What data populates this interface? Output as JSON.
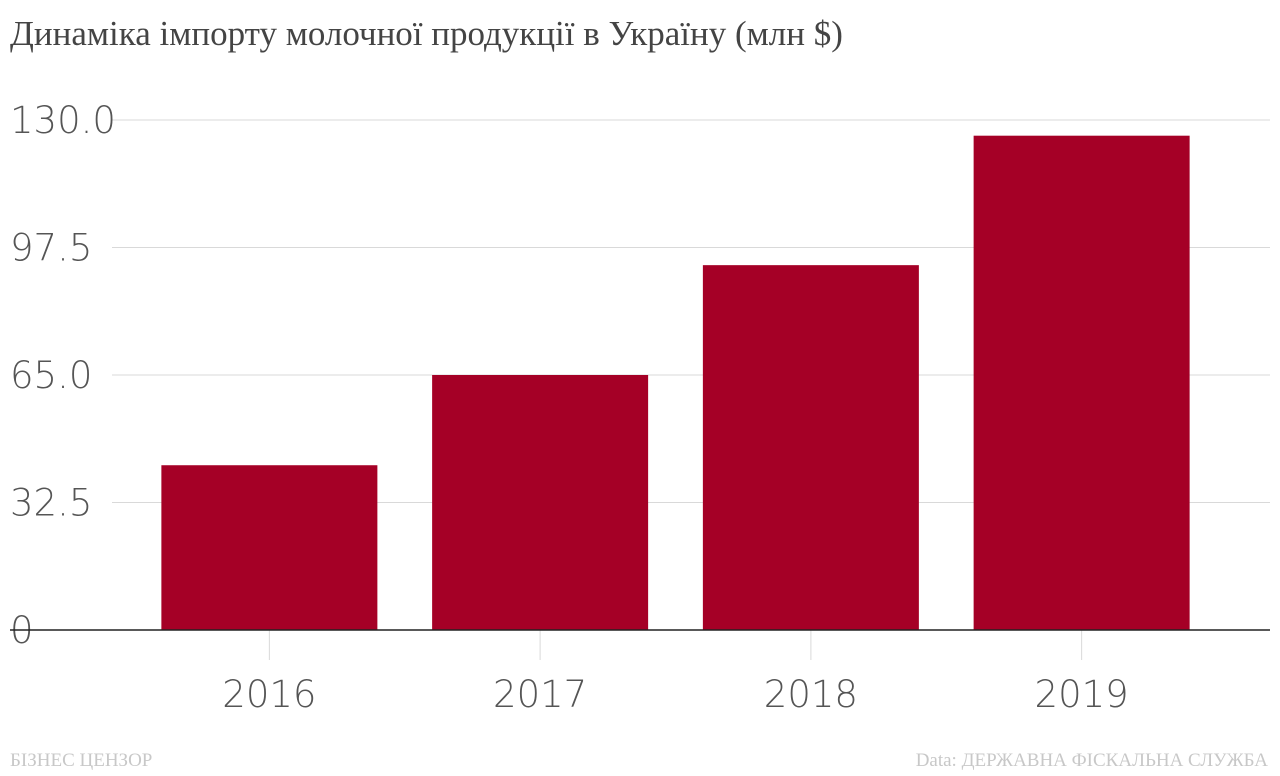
{
  "chart_data": {
    "type": "bar",
    "title": "Динаміка імпорту молочної продукції в Україну (млн $)",
    "categories": [
      "2016",
      "2017",
      "2018",
      "2019"
    ],
    "values": [
      42,
      65,
      93,
      126
    ],
    "ylim": [
      0,
      130
    ],
    "yticks": [
      "0",
      "32.5",
      "65.0",
      "97.5",
      "130.0"
    ],
    "ytick_values": [
      0,
      32.5,
      65,
      97.5,
      130
    ],
    "grid": true,
    "bar_color": "#a50026",
    "xlabel": "",
    "ylabel": ""
  },
  "footer": {
    "brand": "БІЗНЕС ЦЕНЗОР",
    "source": "Data: ДЕРЖАВНА ФІСКАЛЬНА СЛУЖБА"
  }
}
